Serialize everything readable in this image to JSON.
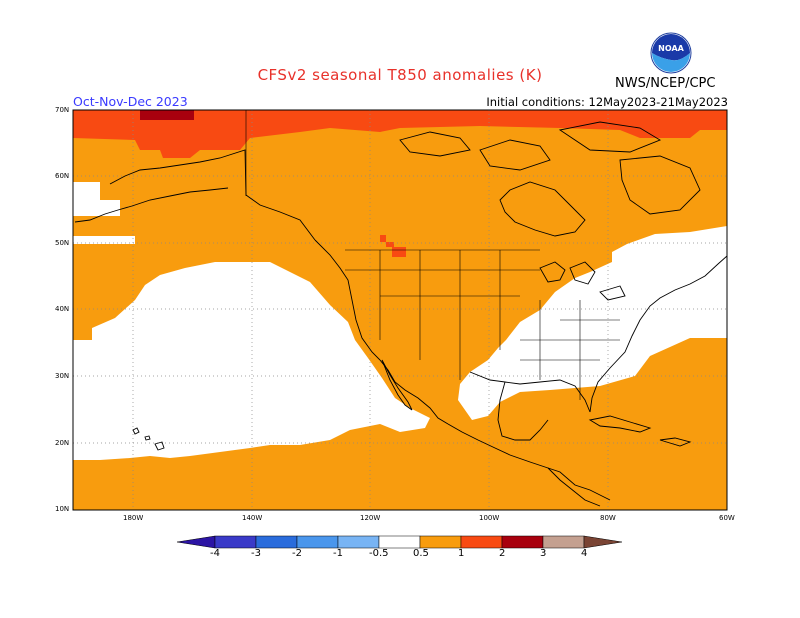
{
  "title": "CFSv2 seasonal T850 anomalies (K)",
  "season": "Oct-Nov-Dec 2023",
  "initial_conditions": "Initial conditions: 12May2023-21May2023",
  "agency": "NWS/NCEP/CPC",
  "logo_text": "NOAA",
  "colors": {
    "white_band": "#ffffff",
    "pos_0_5_1": "#f89c0e",
    "pos_1_2": "#f84a12",
    "pos_2_3": "#a8000e",
    "pos_3_4": "#c4a090",
    "pos_4p": "#7a4434",
    "neg_0_5_1": "#78b4f4",
    "neg_1_2": "#4a96ec",
    "neg_2_3": "#2a6cdc",
    "neg_3_4": "#3a3ac8",
    "neg_4m": "#2c14a4"
  },
  "lat_labels": [
    "70N",
    "60N",
    "50N",
    "40N",
    "30N",
    "20N",
    "10N"
  ],
  "lon_labels": [
    "180W",
    "140W",
    "120W",
    "100W",
    "80W",
    "60W"
  ],
  "colorbar_labels": [
    "-4",
    "-3",
    "-2",
    "-1",
    "-0.5",
    "0.5",
    "1",
    "2",
    "3",
    "4"
  ]
}
